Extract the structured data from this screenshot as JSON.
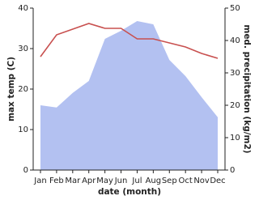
{
  "chart_data": {
    "type": "line",
    "x_label": "date (month)",
    "y_label": "max temp (C)",
    "y2_label": "med. precipitation (kg/m2)",
    "categories": [
      "Jan",
      "Feb",
      "Mar",
      "Apr",
      "May",
      "Jun",
      "Jul",
      "Aug",
      "Sep",
      "Oct",
      "Nov",
      "Dec"
    ],
    "series": [
      {
        "name": "max temp",
        "type": "line",
        "color": "#c8504f",
        "values": [
          28,
          33.4,
          34.8,
          36.2,
          35,
          35,
          32.4,
          32.4,
          31.4,
          30.4,
          28.8,
          27.6
        ]
      },
      {
        "name": "med. precipitation",
        "type": "area",
        "axis": "y2",
        "color": "#b3c1f1",
        "values": [
          20,
          19.3,
          23.8,
          27.5,
          40.5,
          43,
          46,
          45,
          34,
          29,
          22.5,
          16.3
        ]
      }
    ],
    "ylim": [
      0,
      40
    ],
    "yticks": [
      0,
      10,
      20,
      30,
      40
    ],
    "y2lim": [
      0,
      50
    ],
    "y2ticks": [
      0,
      10,
      20,
      30,
      40,
      50
    ]
  }
}
